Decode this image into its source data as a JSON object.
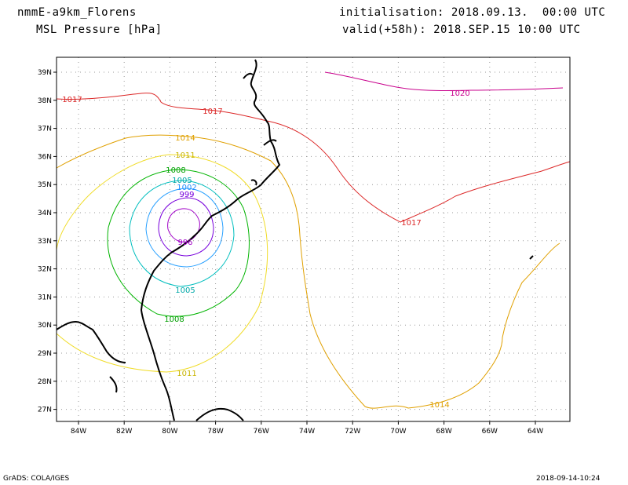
{
  "header": {
    "model": "nmmE-a9km_Florens",
    "field": "MSL Pressure [hPa]",
    "init": "initialisation: 2018.09.13.  00:00 UTC",
    "valid": "valid(+58h): 2018.SEP.15 10:00 UTC"
  },
  "footer": {
    "software": "GrADS: COLA/IGES",
    "timestamp": "2018-09-14-10:24"
  },
  "map": {
    "lat_ticks": [
      "39N",
      "38N",
      "37N",
      "36N",
      "35N",
      "34N",
      "33N",
      "32N",
      "31N",
      "30N",
      "29N",
      "28N",
      "27N"
    ],
    "lon_ticks": [
      "84W",
      "82W",
      "80W",
      "78W",
      "76W",
      "74W",
      "72W",
      "70W",
      "68W",
      "66W",
      "64W"
    ],
    "grid": true,
    "grid_style": "dotted"
  },
  "contours": [
    {
      "level": "1020",
      "color": "#c8008c"
    },
    {
      "level": "1017",
      "color": "#dc2828"
    },
    {
      "level": "1014",
      "color": "#e0a000"
    },
    {
      "level": "1011",
      "color": "#f0dc28"
    },
    {
      "level": "1008",
      "color": "#00b400"
    },
    {
      "level": "1005",
      "color": "#00bebe"
    },
    {
      "level": "1002",
      "color": "#28a0ff"
    },
    {
      "level": "999",
      "color": "#7800dc"
    },
    {
      "level": "996",
      "color": "#a000c8"
    }
  ]
}
